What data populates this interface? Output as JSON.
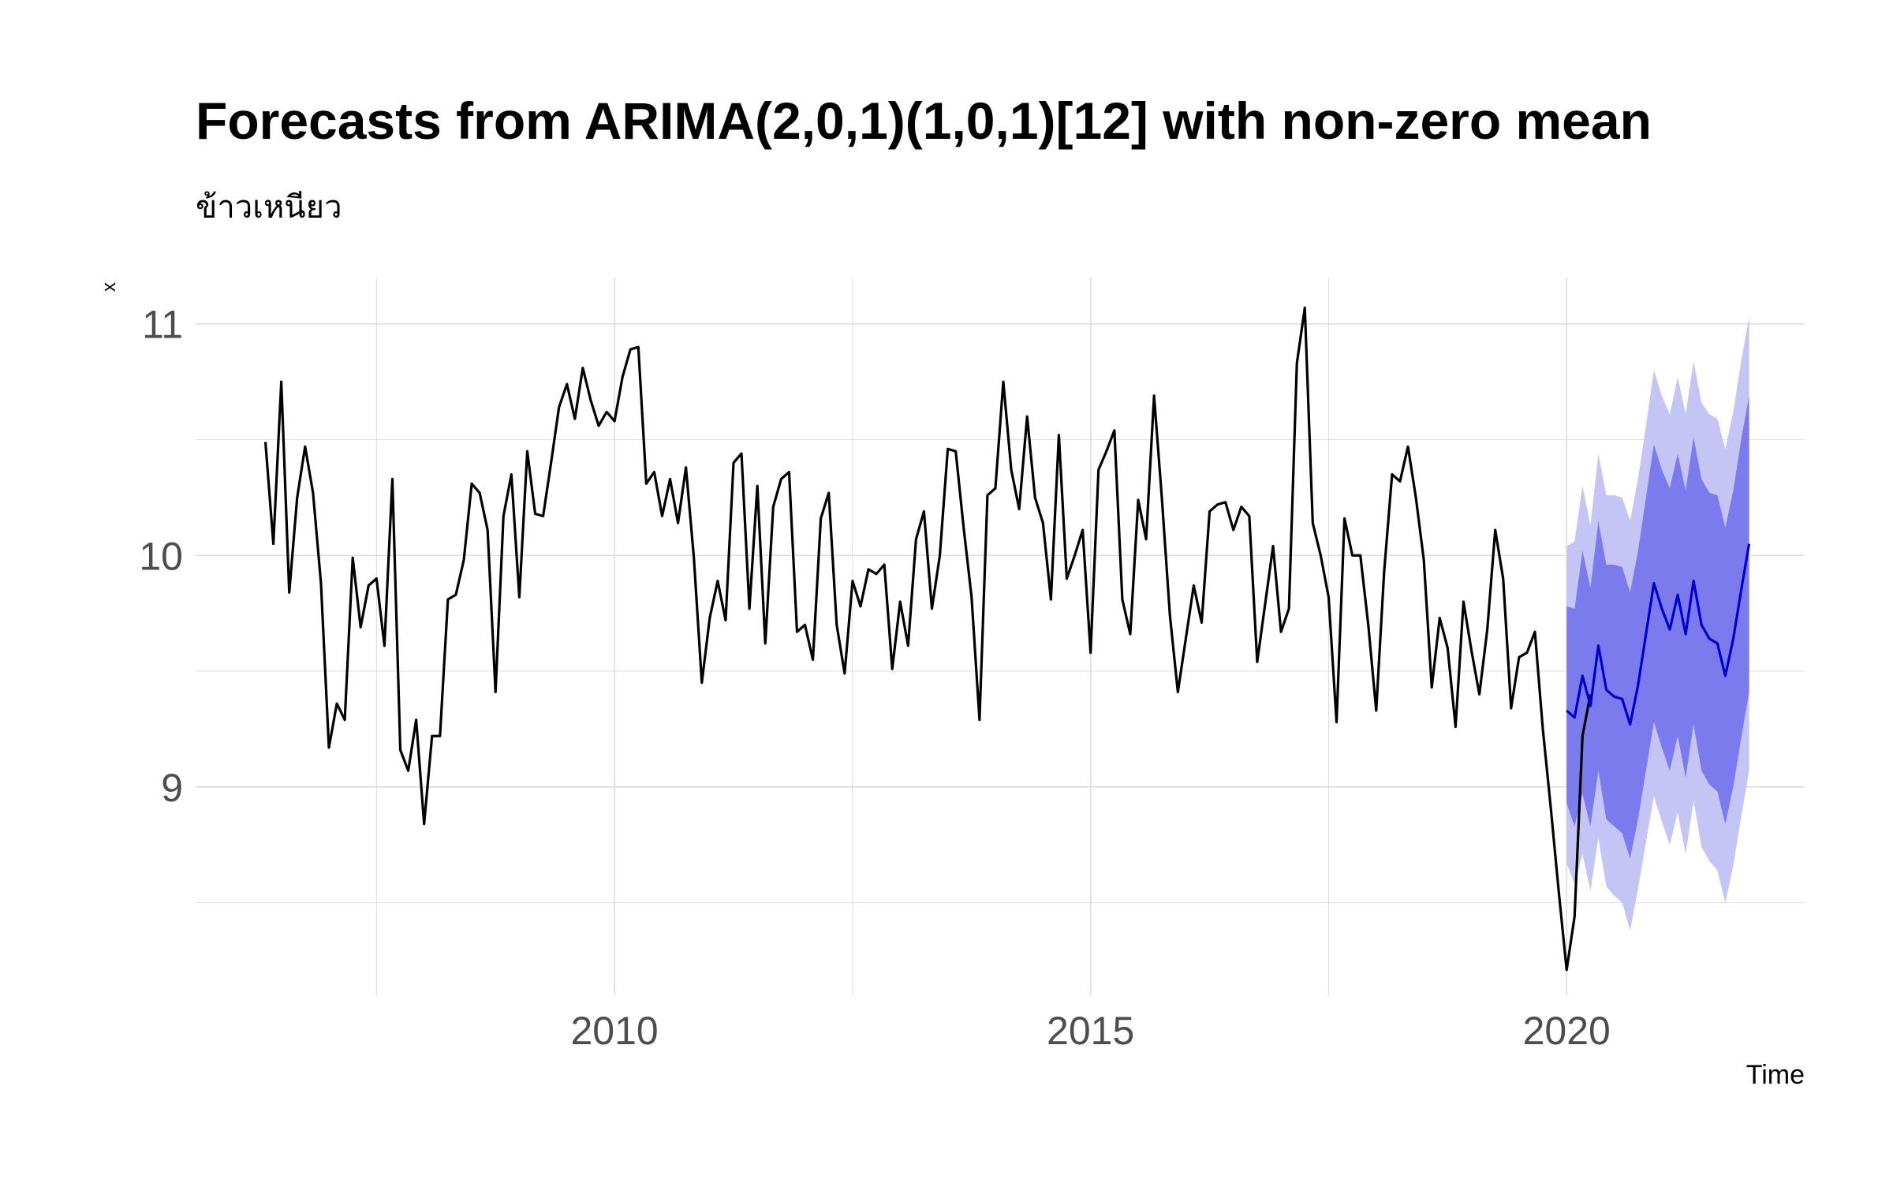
{
  "chart_data": {
    "type": "line",
    "title": "Forecasts from ARIMA(2,0,1)(1,0,1)[12] with non-zero mean",
    "subtitle": "ข้าวเหนียว",
    "xlabel": "Time",
    "ylabel": "x",
    "xlim": [
      2005.6,
      2022.5
    ],
    "ylim": [
      8.1,
      11.2
    ],
    "x_ticks": [
      2010,
      2015,
      2020
    ],
    "x_tick_labels": [
      "2010",
      "2015",
      "2020"
    ],
    "y_ticks": [
      9,
      10,
      11
    ],
    "y_tick_labels": [
      "9",
      "10",
      "11"
    ],
    "grid": true,
    "legend": "none",
    "colors": {
      "history": "#000000",
      "forecast": "#0000CC",
      "band80": "#7B7BEE",
      "band95": "#C5C5F5",
      "grid": "#DDDDDD",
      "title": "#000000",
      "tick_label": "#4D4D4D"
    },
    "history": {
      "start": [
        2006,
        5
      ],
      "frequency": 12,
      "values": [
        10.49,
        10.05,
        10.75,
        9.84,
        10.25,
        10.47,
        10.27,
        9.88,
        9.17,
        9.36,
        9.29,
        9.99,
        9.69,
        9.87,
        9.9,
        9.61,
        10.33,
        9.16,
        9.07,
        9.29,
        8.84,
        9.22,
        9.22,
        9.81,
        9.83,
        9.98,
        10.31,
        10.27,
        10.11,
        9.41,
        10.17,
        10.35,
        9.82,
        10.45,
        10.18,
        10.17,
        10.4,
        10.64,
        10.74,
        10.59,
        10.81,
        10.67,
        10.56,
        10.62,
        10.58,
        10.77,
        10.89,
        10.9,
        10.31,
        10.36,
        10.17,
        10.33,
        10.14,
        10.38,
        9.99,
        9.45,
        9.73,
        9.89,
        9.72,
        10.4,
        10.44,
        9.77,
        10.3,
        9.62,
        10.21,
        10.33,
        10.36,
        9.67,
        9.7,
        9.55,
        10.16,
        10.27,
        9.7,
        9.49,
        9.89,
        9.78,
        9.94,
        9.92,
        9.96,
        9.51,
        9.8,
        9.61,
        10.07,
        10.19,
        9.77,
        10.0,
        10.46,
        10.45,
        10.12,
        9.82,
        9.29,
        10.26,
        10.29,
        10.75,
        10.37,
        10.2,
        10.6,
        10.25,
        10.14,
        9.81,
        10.52,
        9.9,
        10.0,
        10.11,
        9.58,
        10.37,
        10.45,
        10.54,
        9.81,
        9.66,
        10.24,
        10.07,
        10.69,
        10.24,
        9.74,
        9.41,
        9.64,
        9.87,
        9.71,
        10.19,
        10.22,
        10.23,
        10.11,
        10.21,
        10.17,
        9.54,
        9.79,
        10.04,
        9.67,
        9.77,
        10.83,
        11.07,
        10.14,
        10.0,
        9.82,
        9.28,
        10.16,
        10.0,
        10.0,
        9.7,
        9.33,
        9.93,
        10.35,
        10.32,
        10.47,
        10.25,
        9.98,
        9.43,
        9.73,
        9.6,
        9.26,
        9.8,
        9.59,
        9.4,
        9.68,
        10.11,
        9.9,
        9.34,
        9.56,
        9.58,
        9.67,
        9.25,
        8.91,
        8.55,
        8.21,
        8.44,
        9.22,
        9.4
      ]
    },
    "forecast": {
      "start": [
        2020,
        1
      ],
      "frequency": 12,
      "mean": [
        9.33,
        9.3,
        9.48,
        9.35,
        9.61,
        9.42,
        9.39,
        9.38,
        9.27,
        9.44,
        9.66,
        9.88,
        9.77,
        9.68,
        9.83,
        9.66,
        9.89,
        9.7,
        9.64,
        9.62,
        9.48,
        9.64,
        9.85,
        10.05
      ],
      "lo80": [
        8.93,
        8.83,
        8.97,
        8.83,
        9.07,
        8.86,
        8.83,
        8.8,
        8.69,
        8.86,
        9.07,
        9.28,
        9.17,
        9.07,
        9.22,
        9.04,
        9.27,
        9.07,
        9.01,
        8.98,
        8.84,
        9.0,
        9.21,
        9.41
      ],
      "hi80": [
        9.78,
        9.77,
        10.02,
        9.86,
        10.15,
        9.96,
        9.96,
        9.95,
        9.84,
        10.02,
        10.25,
        10.48,
        10.37,
        10.29,
        10.44,
        10.28,
        10.51,
        10.33,
        10.27,
        10.26,
        10.12,
        10.28,
        10.5,
        10.69
      ],
      "lo95": [
        8.67,
        8.58,
        8.71,
        8.55,
        8.78,
        8.57,
        8.53,
        8.5,
        8.38,
        8.56,
        8.76,
        8.96,
        8.85,
        8.75,
        8.89,
        8.71,
        8.94,
        8.74,
        8.68,
        8.64,
        8.5,
        8.66,
        8.87,
        9.07
      ],
      "hi95": [
        10.04,
        10.06,
        10.3,
        10.13,
        10.44,
        10.26,
        10.26,
        10.25,
        10.15,
        10.33,
        10.56,
        10.8,
        10.69,
        10.61,
        10.77,
        10.61,
        10.84,
        10.66,
        10.61,
        10.59,
        10.46,
        10.62,
        10.84,
        11.03
      ]
    }
  }
}
